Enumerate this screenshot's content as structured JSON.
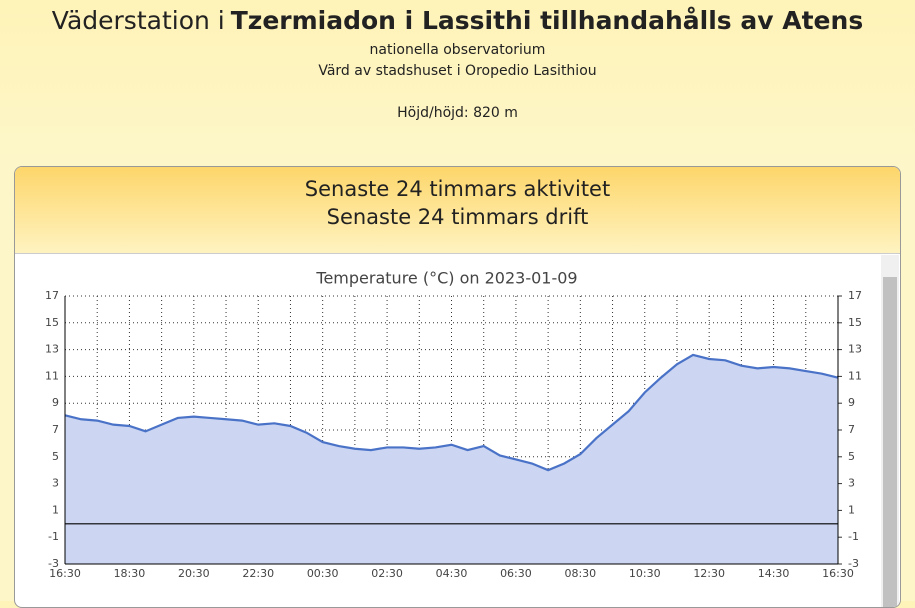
{
  "header": {
    "title_prefix": "Väderstation i",
    "title_bold": "Tzermiadon i Lassithi tillhandahålls av Atens",
    "line2": "nationella observatorium",
    "line3": "Värd av stadshuset i Oropedio Lasithiou",
    "altitude": "Höjd/höjd: 820 m"
  },
  "panel": {
    "heading1": "Senaste 24 timmars aktivitet",
    "heading2": "Senaste 24 timmars drift"
  },
  "chart_data": {
    "type": "area",
    "title": "Temperature (°C) on 2023-01-09",
    "color": "#4a73c8",
    "x": [
      "16:30",
      "17:00",
      "17:30",
      "18:00",
      "18:30",
      "19:00",
      "19:30",
      "20:00",
      "20:30",
      "21:00",
      "21:30",
      "22:00",
      "22:30",
      "23:00",
      "23:30",
      "00:00",
      "00:30",
      "01:00",
      "01:30",
      "02:00",
      "02:30",
      "03:00",
      "03:30",
      "04:00",
      "04:30",
      "05:00",
      "05:30",
      "06:00",
      "06:30",
      "07:00",
      "07:30",
      "08:00",
      "08:30",
      "09:00",
      "09:30",
      "10:00",
      "10:30",
      "11:00",
      "11:30",
      "12:00",
      "12:30",
      "13:00",
      "13:30",
      "14:00",
      "14:30",
      "15:00",
      "15:30",
      "16:00",
      "16:30"
    ],
    "values": [
      8.1,
      7.8,
      7.7,
      7.4,
      7.3,
      6.9,
      7.4,
      7.9,
      8.0,
      7.9,
      7.8,
      7.7,
      7.4,
      7.5,
      7.3,
      6.8,
      6.1,
      5.8,
      5.6,
      5.5,
      5.7,
      5.7,
      5.6,
      5.7,
      5.9,
      5.5,
      5.8,
      5.1,
      4.8,
      4.5,
      4.0,
      4.5,
      5.2,
      6.4,
      7.4,
      8.4,
      9.8,
      10.9,
      11.9,
      12.6,
      12.3,
      12.2,
      11.8,
      11.6,
      11.7,
      11.6,
      11.4,
      11.2,
      10.9
    ],
    "ylim": [
      -3,
      17
    ],
    "yticks": [
      -3,
      -1,
      1,
      3,
      5,
      7,
      9,
      11,
      13,
      15,
      17
    ],
    "y2lim": [
      -3,
      17
    ],
    "y2ticks": [
      -3,
      -1,
      1,
      3,
      5,
      7,
      9,
      11,
      13,
      15,
      17
    ],
    "grid": true
  }
}
